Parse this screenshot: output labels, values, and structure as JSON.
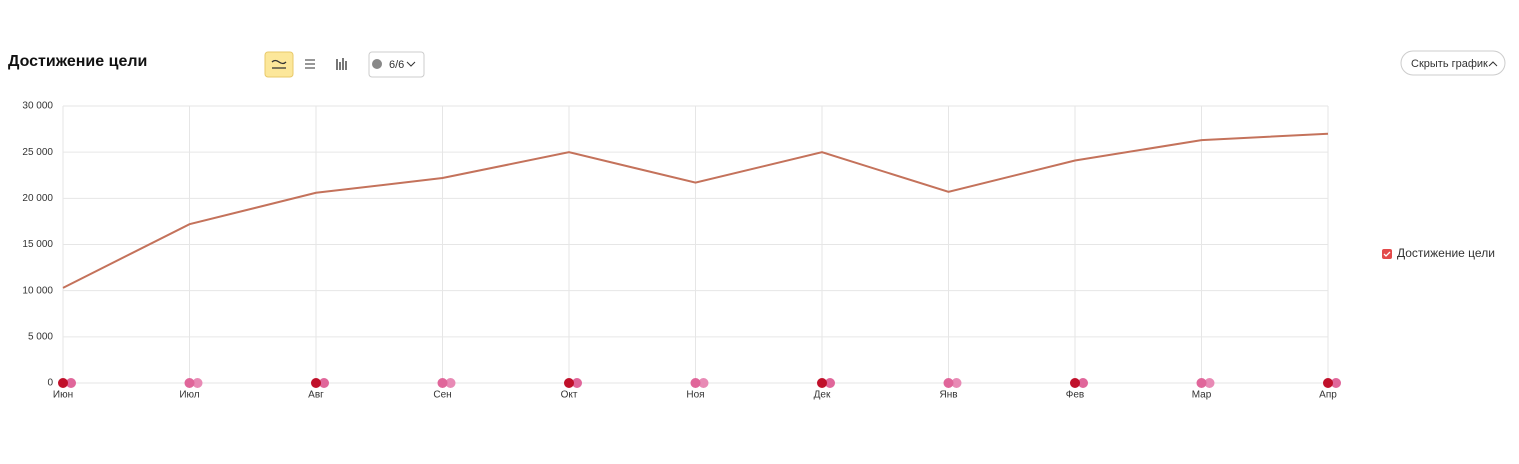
{
  "chart_data": {
    "type": "line",
    "title": "Достижение цели",
    "categories": [
      "Июн",
      "Июл",
      "Авг",
      "Сен",
      "Окт",
      "Ноя",
      "Дек",
      "Янв",
      "Фев",
      "Мар",
      "Апр"
    ],
    "series": [
      {
        "name": "Достижение цели",
        "color": "#c4725b",
        "values": [
          10300,
          17200,
          20600,
          22200,
          25000,
          21700,
          25000,
          20700,
          24100,
          26300,
          27000
        ]
      }
    ],
    "ylim": [
      0,
      30000
    ],
    "yticks": [
      0,
      {
        "value": 5000,
        "label": "5 000"
      },
      {
        "value": 10000,
        "label": "10 000"
      },
      {
        "value": 15000,
        "label": "15 000"
      },
      {
        "value": 20000,
        "label": "20 000"
      },
      {
        "value": 25000,
        "label": "25 000"
      },
      {
        "value": 30000,
        "label": "30 000"
      }
    ],
    "grid": true,
    "legend": "right"
  },
  "toolbar": {
    "comments": "6/6",
    "hide_button": "Скрыть график"
  }
}
